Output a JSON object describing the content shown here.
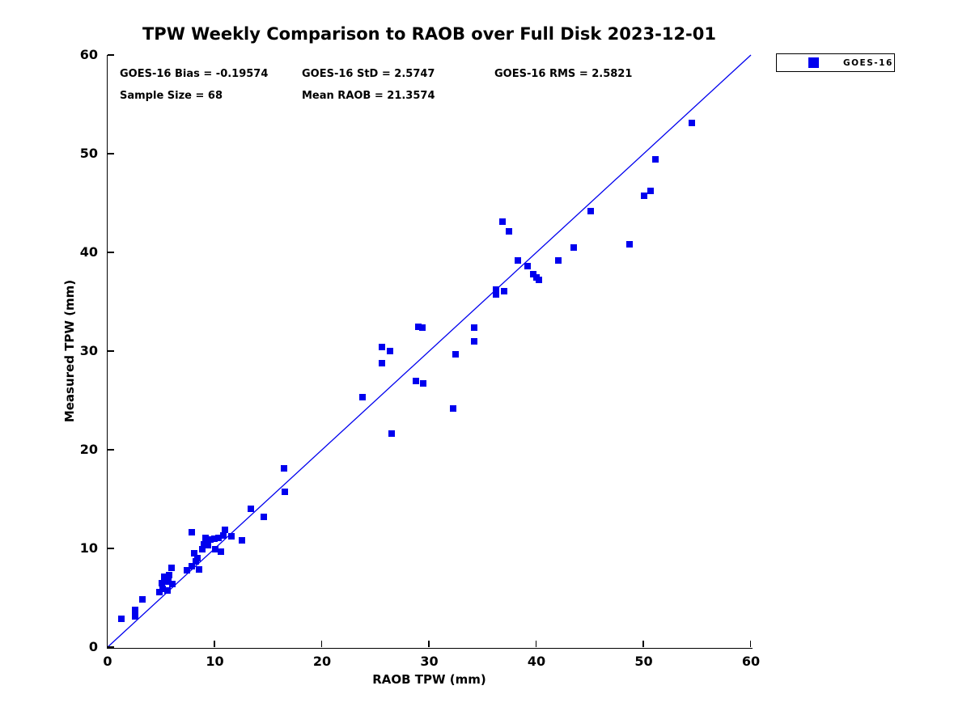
{
  "title": "TPW Weekly Comparison to RAOB over Full Disk 2023-12-01",
  "stats": {
    "bias": "GOES-16 Bias = -0.19574",
    "std": "GOES-16 StD = 2.5747",
    "rms": "GOES-16 RMS = 2.5821",
    "sample_size": "Sample Size = 68",
    "mean_raob": "Mean RAOB = 21.3574"
  },
  "legend": {
    "entries": [
      {
        "label": "GOES-16",
        "marker": "square",
        "color": "#0000ee"
      }
    ],
    "position": "top-right-outside"
  },
  "colors": {
    "marker": "#0000ee",
    "identity_line": "#0000ee",
    "axis": "#000000",
    "text": "#000000",
    "background": "#ffffff"
  },
  "chart_data": {
    "type": "scatter",
    "title": "TPW Weekly Comparison to RAOB over Full Disk 2023-12-01",
    "xlabel": "RAOB TPW (mm)",
    "ylabel": "Measured TPW (mm)",
    "xlim": [
      0,
      60
    ],
    "ylim": [
      0,
      60
    ],
    "x_ticks": [
      0,
      10,
      20,
      30,
      40,
      50,
      60
    ],
    "y_ticks": [
      0,
      10,
      20,
      30,
      40,
      50,
      60
    ],
    "grid": false,
    "legend_position": "top-right-outside",
    "identity_line": {
      "from": [
        0,
        0
      ],
      "to": [
        60,
        60
      ]
    },
    "series": [
      {
        "name": "GOES-16",
        "marker": "square",
        "color": "#0000ee",
        "sample_size": 68,
        "points": [
          [
            1.3,
            2.9
          ],
          [
            2.6,
            3.1
          ],
          [
            2.6,
            3.8
          ],
          [
            3.3,
            4.8
          ],
          [
            4.9,
            5.6
          ],
          [
            5.2,
            5.9
          ],
          [
            5.6,
            5.7
          ],
          [
            5.1,
            6.5
          ],
          [
            5.7,
            6.6
          ],
          [
            6.1,
            6.4
          ],
          [
            5.3,
            7.1
          ],
          [
            5.8,
            7.3
          ],
          [
            6.0,
            8.0
          ],
          [
            7.4,
            7.8
          ],
          [
            7.9,
            8.2
          ],
          [
            8.3,
            8.7
          ],
          [
            8.6,
            7.9
          ],
          [
            8.1,
            9.5
          ],
          [
            8.4,
            9.0
          ],
          [
            8.9,
            9.9
          ],
          [
            9.0,
            10.4
          ],
          [
            9.4,
            10.3
          ],
          [
            9.2,
            11.1
          ],
          [
            9.6,
            10.9
          ],
          [
            10.0,
            11.0
          ],
          [
            10.4,
            11.1
          ],
          [
            10.8,
            11.3
          ],
          [
            11.0,
            11.9
          ],
          [
            11.6,
            11.2
          ],
          [
            10.1,
            9.9
          ],
          [
            10.6,
            9.7
          ],
          [
            12.6,
            10.8
          ],
          [
            7.9,
            11.6
          ],
          [
            13.4,
            14.0
          ],
          [
            14.6,
            13.2
          ],
          [
            16.5,
            18.1
          ],
          [
            16.6,
            15.7
          ],
          [
            23.8,
            25.3
          ],
          [
            25.6,
            28.8
          ],
          [
            25.6,
            30.4
          ],
          [
            26.4,
            30.0
          ],
          [
            26.5,
            21.6
          ],
          [
            28.8,
            27.0
          ],
          [
            29.5,
            26.7
          ],
          [
            29.0,
            32.5
          ],
          [
            29.4,
            32.4
          ],
          [
            32.3,
            24.2
          ],
          [
            32.5,
            29.7
          ],
          [
            34.2,
            31.0
          ],
          [
            34.2,
            32.4
          ],
          [
            36.3,
            35.7
          ],
          [
            36.3,
            36.2
          ],
          [
            37.0,
            36.1
          ],
          [
            36.9,
            43.1
          ],
          [
            37.5,
            42.1
          ],
          [
            38.3,
            39.2
          ],
          [
            39.2,
            38.6
          ],
          [
            39.7,
            37.8
          ],
          [
            40.0,
            37.5
          ],
          [
            40.3,
            37.2
          ],
          [
            42.1,
            39.2
          ],
          [
            43.5,
            40.5
          ],
          [
            45.1,
            44.2
          ],
          [
            48.7,
            40.8
          ],
          [
            50.1,
            45.7
          ],
          [
            50.7,
            46.2
          ],
          [
            51.1,
            49.4
          ],
          [
            54.5,
            53.1
          ]
        ]
      }
    ]
  }
}
